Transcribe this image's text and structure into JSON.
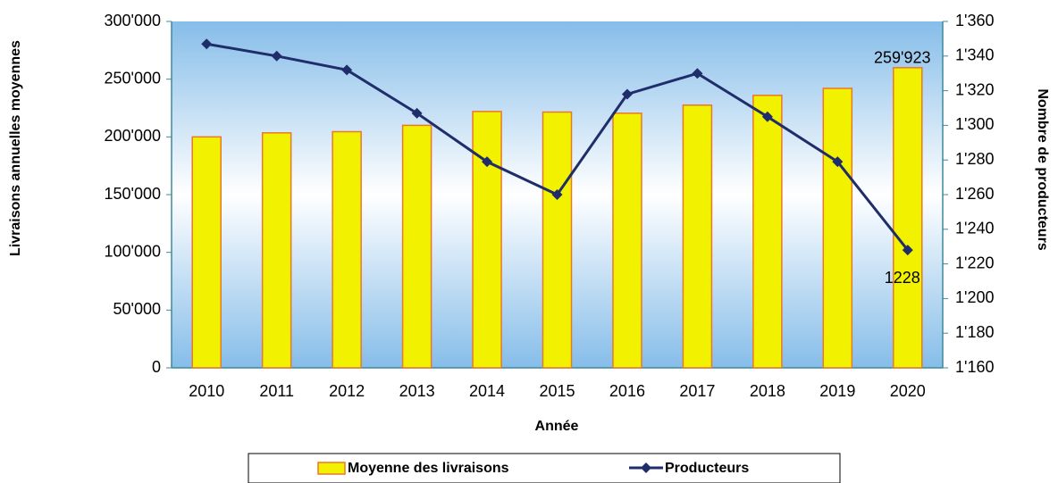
{
  "chart_data": {
    "type": "bar",
    "y_label": "Livraisons annuelles moyennes",
    "y2_label": "Nombre de producteurs",
    "x_label": "Année",
    "categories": [
      "2010",
      "2011",
      "2012",
      "2013",
      "2014",
      "2015",
      "2016",
      "2017",
      "2018",
      "2019",
      "2020"
    ],
    "series": [
      {
        "name": "Moyenne des livraisons",
        "type": "bar",
        "color": "#f2f200",
        "edge_color": "#e8782a",
        "values": [
          200000,
          203500,
          204500,
          210000,
          222000,
          221500,
          220500,
          227500,
          236000,
          242000,
          259923
        ],
        "value_labels": [
          null,
          null,
          null,
          null,
          null,
          null,
          null,
          null,
          null,
          null,
          "259'923"
        ]
      },
      {
        "name": "Producteurs",
        "type": "line",
        "axis": "y2",
        "color": "#1f2d6b",
        "values": [
          1347,
          1340,
          1332,
          1307,
          1279,
          1260,
          1318,
          1330,
          1305,
          1279,
          1228
        ],
        "value_labels": [
          null,
          null,
          null,
          null,
          null,
          null,
          null,
          null,
          null,
          null,
          "1228"
        ]
      }
    ],
    "ylim": [
      0,
      300000
    ],
    "yticks": [
      0,
      {
        "value": 50000,
        "label": "50'000"
      },
      {
        "value": 100000,
        "label": "100'000"
      },
      {
        "value": 150000,
        "label": "150'000"
      },
      {
        "value": 200000,
        "label": "200'000"
      },
      {
        "value": 250000,
        "label": "250'000"
      },
      {
        "value": 300000,
        "label": "300'000"
      }
    ],
    "y2lim": [
      1160,
      1360
    ],
    "y2ticks": [
      {
        "value": 1160,
        "label": "1'160"
      },
      {
        "value": 1180,
        "label": "1'180"
      },
      {
        "value": 1200,
        "label": "1'200"
      },
      {
        "value": 1220,
        "label": "1'220"
      },
      {
        "value": 1240,
        "label": "1'240"
      },
      {
        "value": 1260,
        "label": "1'260"
      },
      {
        "value": 1280,
        "label": "1'280"
      },
      {
        "value": 1300,
        "label": "1'300"
      },
      {
        "value": 1320,
        "label": "1'320"
      },
      {
        "value": 1340,
        "label": "1'340"
      },
      {
        "value": 1360,
        "label": "1'360"
      }
    ],
    "legend": "bottom"
  }
}
